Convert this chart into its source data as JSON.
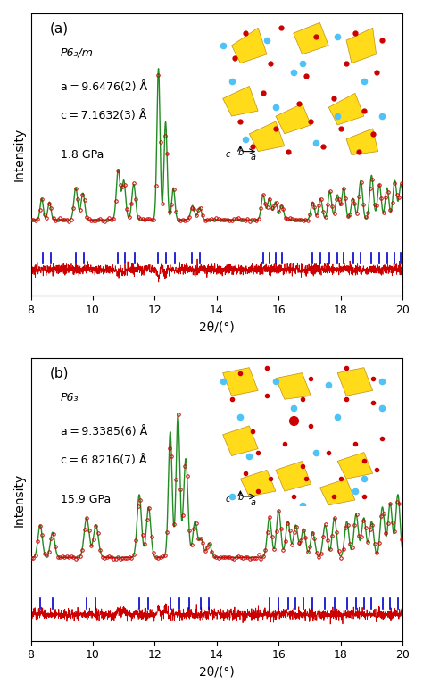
{
  "panel_a": {
    "label": "(a)",
    "spacegroup": "P6₃/m",
    "a_param": "a = 9.6476(2) Å",
    "c_param": "c = 7.1632(3) Å",
    "pressure": "1.8 GPa",
    "tick_positions": [
      8.4,
      8.65,
      9.45,
      9.7,
      10.8,
      11.05,
      11.35,
      12.1,
      12.35,
      12.65,
      13.2,
      13.45,
      15.5,
      15.7,
      15.9,
      16.1,
      17.1,
      17.35,
      17.65,
      17.9,
      18.1,
      18.4,
      18.65,
      19.0,
      19.25,
      19.5,
      19.75,
      19.95
    ],
    "xlim": [
      8,
      20
    ],
    "ylim_main": [
      0,
      1.0
    ],
    "background_color": "#ffffff"
  },
  "panel_b": {
    "label": "(b)",
    "spacegroup": "P6₃",
    "a_param": "a = 9.3385(6) Å",
    "c_param": "c = 6.8216(7) Å",
    "pressure": "15.9 GPa",
    "tick_positions": [
      8.3,
      8.7,
      9.8,
      10.1,
      11.5,
      11.8,
      12.5,
      12.8,
      13.1,
      13.5,
      13.75,
      15.7,
      16.0,
      16.3,
      16.55,
      16.8,
      17.1,
      17.5,
      17.8,
      18.2,
      18.5,
      18.75,
      19.0,
      19.35,
      19.6,
      19.85
    ],
    "xlim": [
      8,
      20
    ],
    "ylim_main": [
      0,
      1.0
    ],
    "background_color": "#ffffff"
  },
  "line_colors": {
    "observed": "#cc0000",
    "calculated": "#228B22",
    "difference": "#cc0000",
    "ticks": "#0000cc"
  },
  "xlabel": "2θ/(°)",
  "ylabel": "Intensity"
}
